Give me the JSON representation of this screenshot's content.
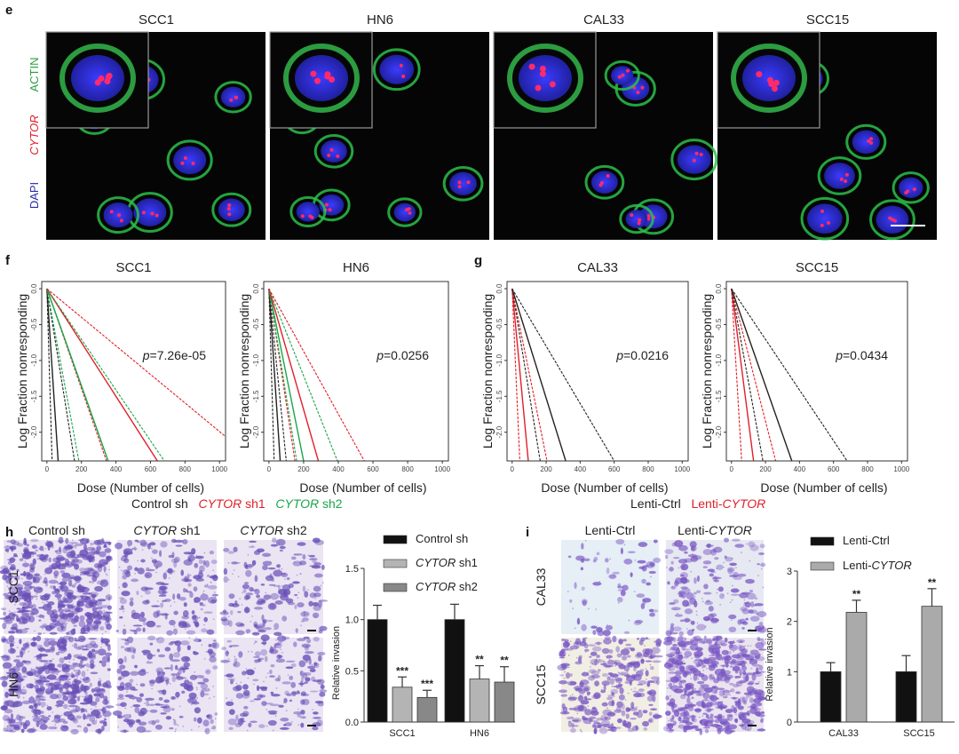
{
  "panel_e": {
    "label": "e",
    "columns": [
      "SCC1",
      "HN6",
      "CAL33",
      "SCC15"
    ],
    "stain_labels": [
      {
        "text": "ACTIN",
        "color": "#2e9e45"
      },
      {
        "text": "CYTOR",
        "color": "#e0202a"
      },
      {
        "text": "DAPI",
        "color": "#2a2aa8"
      }
    ]
  },
  "panel_f": {
    "label": "f"
  },
  "panel_g": {
    "label": "g"
  },
  "panel_h": {
    "label": "h",
    "columns": [
      "Control sh",
      "CYTOR sh1",
      "CYTOR sh2"
    ],
    "column_parts": [
      [
        "Control sh",
        ""
      ],
      [
        "CYTOR",
        " sh1"
      ],
      [
        "CYTOR",
        " sh2"
      ]
    ],
    "rows": [
      "SCC1",
      "HN6"
    ]
  },
  "panel_i": {
    "label": "i",
    "column_parts": [
      [
        "Lenti-Ctrl",
        ""
      ],
      [
        "Lenti-",
        "CYTOR"
      ]
    ],
    "rows": [
      "CAL33",
      "SCC15"
    ]
  },
  "legends": {
    "f": [
      {
        "italic": "",
        "text": "Control sh",
        "color": "#222222"
      },
      {
        "italic": "CYTOR",
        "text": " sh1",
        "color": "#e0202a"
      },
      {
        "italic": "CYTOR",
        "text": " sh2",
        "color": "#1aa64a"
      }
    ],
    "g": [
      {
        "text": "Lenti-Ctrl",
        "italic": "",
        "color": "#222222"
      },
      {
        "text": "Lenti-",
        "italic": "CYTOR",
        "color": "#e0202a"
      }
    ]
  },
  "chart_data": [
    {
      "id": "f-scc1",
      "type": "line",
      "title": "SCC1",
      "xlabel": "Dose (Number of cells)",
      "ylabel": "Log Fraction nonresponding",
      "xlim": [
        -30,
        1035
      ],
      "ylim": [
        -2.4,
        0.1
      ],
      "xticks": [
        "0",
        "200",
        "400",
        "600",
        "800",
        "1000"
      ],
      "yticks": [
        "0.0",
        "-0.5",
        "-1.0",
        "-1.5",
        "-2.0"
      ],
      "annotation": {
        "italic": "p",
        "text": "=7.26e-05"
      },
      "lines": [
        {
          "group": "Control sh",
          "style": "dashed",
          "to": [
            30,
            -2.4
          ]
        },
        {
          "group": "Control sh",
          "style": "solid",
          "to": [
            65,
            -2.4
          ]
        },
        {
          "group": "Control sh",
          "style": "dashed",
          "to": [
            160,
            -2.4
          ]
        },
        {
          "group": "CYTOR sh2",
          "style": "dashed",
          "to": [
            185,
            -2.4
          ]
        },
        {
          "group": "CYTOR sh1",
          "style": "dashed",
          "to": [
            345,
            -2.4
          ]
        },
        {
          "group": "CYTOR sh2",
          "style": "solid",
          "to": [
            355,
            -2.4
          ]
        },
        {
          "group": "CYTOR sh1",
          "style": "solid",
          "to": [
            640,
            -2.4
          ]
        },
        {
          "group": "CYTOR sh2",
          "style": "dashed",
          "to": [
            680,
            -2.4
          ]
        },
        {
          "group": "CYTOR sh1",
          "style": "dashed",
          "to": [
            1040,
            -2.07
          ]
        }
      ]
    },
    {
      "id": "f-hn6",
      "type": "line",
      "title": "HN6",
      "xlabel": "Dose (Number of cells)",
      "ylabel": "Log Fraction nonresponding",
      "xlim": [
        -30,
        1035
      ],
      "ylim": [
        -2.4,
        0.1
      ],
      "xticks": [
        "0",
        "200",
        "400",
        "600",
        "800",
        "1000"
      ],
      "yticks": [
        "0.0",
        "-0.5",
        "-1.0",
        "-1.5",
        "-2.0"
      ],
      "annotation": {
        "italic": "p",
        "text": "=0.0256"
      },
      "lines": [
        {
          "group": "Control sh",
          "style": "dashed",
          "to": [
            30,
            -2.4
          ]
        },
        {
          "group": "Control sh",
          "style": "solid",
          "to": [
            65,
            -2.4
          ]
        },
        {
          "group": "Control sh",
          "style": "dashed",
          "to": [
            100,
            -2.4
          ]
        },
        {
          "group": "CYTOR sh1",
          "style": "dashed",
          "to": [
            150,
            -2.4
          ]
        },
        {
          "group": "CYTOR sh2",
          "style": "dashed",
          "to": [
            160,
            -2.4
          ]
        },
        {
          "group": "CYTOR sh2",
          "style": "solid",
          "to": [
            200,
            -2.4
          ]
        },
        {
          "group": "CYTOR sh1",
          "style": "solid",
          "to": [
            285,
            -2.4
          ]
        },
        {
          "group": "CYTOR sh2",
          "style": "dashed",
          "to": [
            395,
            -2.4
          ]
        },
        {
          "group": "CYTOR sh1",
          "style": "dashed",
          "to": [
            550,
            -2.4
          ]
        }
      ]
    },
    {
      "id": "g-cal33",
      "type": "line",
      "title": "CAL33",
      "xlabel": "Dose (Number of cells)",
      "ylabel": "Log Fraction nonresponding",
      "xlim": [
        -30,
        1035
      ],
      "ylim": [
        -2.4,
        0.1
      ],
      "xticks": [
        "0",
        "200",
        "400",
        "600",
        "800",
        "1000"
      ],
      "yticks": [
        "0.0",
        "-0.5",
        "-1.0",
        "-1.5",
        "-2.0"
      ],
      "annotation": {
        "italic": "p",
        "text": "=0.0216"
      },
      "lines": [
        {
          "group": "Lenti-CYTOR",
          "style": "dashed",
          "to": [
            45,
            -2.4
          ]
        },
        {
          "group": "Lenti-CYTOR",
          "style": "solid",
          "to": [
            95,
            -2.4
          ]
        },
        {
          "group": "Lenti-Ctrl",
          "style": "dashed",
          "to": [
            165,
            -2.4
          ]
        },
        {
          "group": "Lenti-CYTOR",
          "style": "dashed",
          "to": [
            205,
            -2.4
          ]
        },
        {
          "group": "Lenti-Ctrl",
          "style": "solid",
          "to": [
            315,
            -2.4
          ]
        },
        {
          "group": "Lenti-Ctrl",
          "style": "dashed",
          "to": [
            600,
            -2.4
          ]
        }
      ]
    },
    {
      "id": "g-scc15",
      "type": "line",
      "title": "SCC15",
      "xlabel": "Dose (Number of cells)",
      "ylabel": "Log Fraction nonresponding",
      "xlim": [
        -30,
        1035
      ],
      "ylim": [
        -2.4,
        0.1
      ],
      "xticks": [
        "0",
        "200",
        "400",
        "600",
        "800",
        "1000"
      ],
      "yticks": [
        "0.0",
        "-0.5",
        "-1.0",
        "-1.5",
        "-2.0"
      ],
      "annotation": {
        "italic": "p",
        "text": "=0.0434"
      },
      "lines": [
        {
          "group": "Lenti-CYTOR",
          "style": "dashed",
          "to": [
            60,
            -2.4
          ]
        },
        {
          "group": "Lenti-CYTOR",
          "style": "solid",
          "to": [
            130,
            -2.4
          ]
        },
        {
          "group": "Lenti-Ctrl",
          "style": "dashed",
          "to": [
            185,
            -2.4
          ]
        },
        {
          "group": "Lenti-CYTOR",
          "style": "dashed",
          "to": [
            260,
            -2.4
          ]
        },
        {
          "group": "Lenti-Ctrl",
          "style": "solid",
          "to": [
            355,
            -2.4
          ]
        },
        {
          "group": "Lenti-Ctrl",
          "style": "dashed",
          "to": [
            680,
            -2.4
          ]
        }
      ]
    },
    {
      "id": "h-bar",
      "type": "bar",
      "ylabel": "Relative invasion",
      "categories": [
        "SCC1",
        "HN6"
      ],
      "ylim": [
        0,
        1.5
      ],
      "yticks": [
        "0.0",
        "0.5",
        "1.0",
        "1.5"
      ],
      "legend": "top",
      "series": [
        {
          "name": "Control sh",
          "color": "#111111",
          "values": [
            1.0,
            1.0
          ],
          "errors": [
            0.14,
            0.15
          ],
          "sig": [
            "",
            ""
          ]
        },
        {
          "name": "CYTOR sh1",
          "color": "#b4b4b4",
          "values": [
            0.34,
            0.42
          ],
          "errors": [
            0.1,
            0.13
          ],
          "sig": [
            "***",
            "**"
          ]
        },
        {
          "name": "CYTOR sh2",
          "color": "#888888",
          "values": [
            0.24,
            0.39
          ],
          "errors": [
            0.07,
            0.15
          ],
          "sig": [
            "***",
            "**"
          ]
        }
      ]
    },
    {
      "id": "i-bar",
      "type": "bar",
      "ylabel": "Relative invasion",
      "categories": [
        "CAL33",
        "SCC15"
      ],
      "ylim": [
        0,
        3
      ],
      "yticks": [
        "0",
        "1",
        "2",
        "3"
      ],
      "legend": "top",
      "series": [
        {
          "name": "Lenti-Ctrl",
          "color": "#111111",
          "values": [
            1.0,
            1.0
          ],
          "errors": [
            0.18,
            0.32
          ],
          "sig": [
            "",
            ""
          ]
        },
        {
          "name": "Lenti-CYTOR",
          "color": "#aaaaaa",
          "values": [
            2.18,
            2.3
          ],
          "errors": [
            0.24,
            0.35
          ],
          "sig": [
            "**",
            "**"
          ]
        }
      ]
    }
  ]
}
